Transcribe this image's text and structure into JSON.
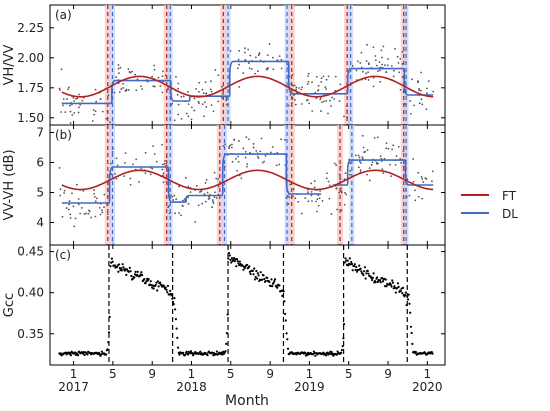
{
  "chart_data": [
    {
      "type": "scatter",
      "panel_label": "(a)",
      "ylabel": "VH/VV",
      "ylim": [
        1.44,
        2.44
      ],
      "yticks": [
        1.5,
        1.75,
        2.0,
        2.25
      ],
      "ytick_labels": [
        "1.50",
        "1.75",
        "2.00",
        "2.25"
      ],
      "xlim": [
        2016.8,
        2020.15
      ],
      "fit": {
        "mean": 1.76,
        "amplitude": 0.085,
        "peak_phase": 0.56
      },
      "dl_segments": [
        {
          "x": [
            2016.9,
            2017.32
          ],
          "y": 1.62
        },
        {
          "x": [
            2017.32,
            2017.82
          ],
          "y": 1.81
        },
        {
          "x": [
            2017.82,
            2017.98
          ],
          "y": 1.64
        },
        {
          "x": [
            2017.98,
            2018.32
          ],
          "y": 1.68
        },
        {
          "x": [
            2018.32,
            2018.82
          ],
          "y": 1.97
        },
        {
          "x": [
            2018.82,
            2019.32
          ],
          "y": 1.7
        },
        {
          "x": [
            2019.32,
            2019.8
          ],
          "y": 1.91
        },
        {
          "x": [
            2019.8,
            2020.05
          ],
          "y": 1.69
        }
      ],
      "ft_vlines": [
        2017.29,
        2017.79,
        2018.27,
        2018.85,
        2019.32,
        2019.8
      ],
      "dl_vlines": [
        2017.33,
        2017.82,
        2018.31,
        2018.81,
        2019.35,
        2019.82
      ],
      "scatter": {
        "noise": 0.13,
        "count": 330
      }
    },
    {
      "type": "scatter",
      "panel_label": "(b)",
      "ylabel": "VV-VH (dB)",
      "ylim": [
        3.25,
        7.25
      ],
      "yticks": [
        4,
        5,
        6,
        7
      ],
      "ytick_labels": [
        "4",
        "5",
        "6",
        "7"
      ],
      "xlim": [
        2016.8,
        2020.15
      ],
      "fit": {
        "mean": 5.42,
        "amplitude": 0.32,
        "peak_phase": 0.56
      },
      "dl_segments": [
        {
          "x": [
            2016.9,
            2017.3
          ],
          "y": 4.65
        },
        {
          "x": [
            2017.3,
            2017.8
          ],
          "y": 5.85
        },
        {
          "x": [
            2017.8,
            2017.95
          ],
          "y": 4.68
        },
        {
          "x": [
            2017.95,
            2018.26
          ],
          "y": 4.9
        },
        {
          "x": [
            2018.26,
            2018.8
          ],
          "y": 6.28
        },
        {
          "x": [
            2018.8,
            2019.1
          ],
          "y": 4.95
        },
        {
          "x": [
            2019.2,
            2019.32
          ],
          "y": 5.25
        },
        {
          "x": [
            2019.32,
            2019.81
          ],
          "y": 6.08
        },
        {
          "x": [
            2019.81,
            2020.05
          ],
          "y": 5.25
        }
      ],
      "ft_vlines": [
        2017.29,
        2017.79,
        2018.24,
        2018.85,
        2019.26,
        2019.8
      ],
      "dl_vlines": [
        2017.33,
        2017.82,
        2018.28,
        2018.81,
        2019.36,
        2019.82
      ],
      "scatter": {
        "noise": 0.55,
        "count": 330
      }
    },
    {
      "type": "scatter",
      "panel_label": "(c)",
      "ylabel": "Gcc",
      "ylim": [
        0.312,
        0.458
      ],
      "yticks": [
        0.35,
        0.4,
        0.45
      ],
      "ytick_labels": [
        "0.35",
        "0.40",
        "0.45"
      ],
      "xlim": [
        2016.8,
        2020.15
      ],
      "vlines": [
        2017.3,
        2017.84,
        2018.31,
        2018.78,
        2019.29,
        2019.83
      ],
      "gcc_model": {
        "base": 0.326,
        "season_starts": [
          2017.31,
          2018.31,
          2019.3
        ],
        "season_ends": [
          2017.85,
          2018.78,
          2019.84
        ],
        "peaks": [
          0.437,
          0.447,
          0.44
        ],
        "late": [
          0.402,
          0.404,
          0.401
        ]
      }
    }
  ],
  "x_axis": {
    "label": "Month",
    "ticks": [
      {
        "x": 2017.0,
        "label": "1",
        "year": "2017"
      },
      {
        "x": 2017.333,
        "label": "5",
        "year": ""
      },
      {
        "x": 2017.667,
        "label": "9",
        "year": ""
      },
      {
        "x": 2018.0,
        "label": "1",
        "year": "2018"
      },
      {
        "x": 2018.333,
        "label": "5",
        "year": ""
      },
      {
        "x": 2018.667,
        "label": "9",
        "year": ""
      },
      {
        "x": 2019.0,
        "label": "1",
        "year": "2019"
      },
      {
        "x": 2019.333,
        "label": "5",
        "year": ""
      },
      {
        "x": 2019.667,
        "label": "9",
        "year": ""
      },
      {
        "x": 2020.0,
        "label": "1",
        "year": "2020"
      }
    ]
  },
  "legend": {
    "placement": "right",
    "items": [
      {
        "label": "FT",
        "color": "#b22222"
      },
      {
        "label": "DL",
        "color": "#4169c8"
      }
    ]
  },
  "colors": {
    "ft": "#b22222",
    "dl": "#4169c8",
    "ft_band": "#f7c6c6",
    "dl_band": "#c9d5f2",
    "scatter_ab": "#555555",
    "scatter_c": "#000000"
  }
}
